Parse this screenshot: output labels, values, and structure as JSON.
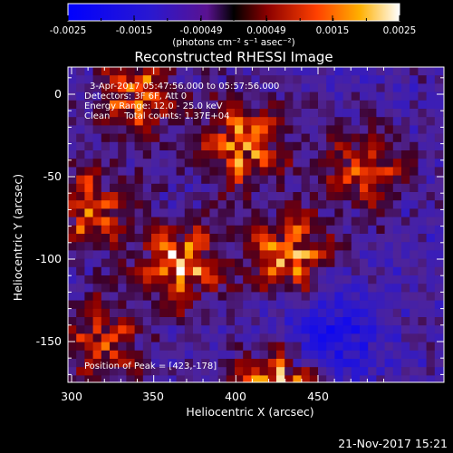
{
  "chart_data": {
    "type": "heatmap",
    "title": "Reconstructed RHESSI Image",
    "xlabel": "Heliocentric X (arcsec)",
    "ylabel": "Heliocentric Y (arcsec)",
    "xlim": [
      300,
      490
    ],
    "ylim": [
      -178,
      17
    ],
    "x_ticks": [
      "300",
      "350",
      "400",
      "450"
    ],
    "y_ticks": [
      "0",
      "-50",
      "-100",
      "-150"
    ],
    "colorbar": {
      "min": -0.0025,
      "max": 0.0025,
      "tick_labels": [
        "-0.0025",
        "-0.0015",
        "-0.00049",
        "0.00049",
        "0.0015",
        "0.0025"
      ],
      "label": "(photons cm⁻² s⁻¹ asec⁻²)"
    },
    "annotations": [
      "3-Apr-2017 05:47:56.000 to 05:57:56.000",
      "Detectors: 3F 6F, Att 0",
      "Energy Range: 12.0 - 25.0 keV",
      "Clean     Total counts: 1.37E+04"
    ],
    "peak_label": "Position of Peak = [423,-178]",
    "peak": [
      423,
      -178
    ],
    "sources": [
      {
        "x": 426,
        "y": -178,
        "value": 0.0025
      },
      {
        "x": 340,
        "y": -2,
        "value": 0.0019
      },
      {
        "x": 405,
        "y": -30,
        "value": 0.0022
      },
      {
        "x": 366,
        "y": -103,
        "value": 0.0023
      },
      {
        "x": 433,
        "y": -98,
        "value": 0.0022
      },
      {
        "x": 312,
        "y": -70,
        "value": 0.0017
      },
      {
        "x": 478,
        "y": -45,
        "value": 0.0016
      },
      {
        "x": 318,
        "y": -150,
        "value": 0.0015
      }
    ]
  },
  "footer": {
    "timestamp": "21-Nov-2017 15:21"
  }
}
